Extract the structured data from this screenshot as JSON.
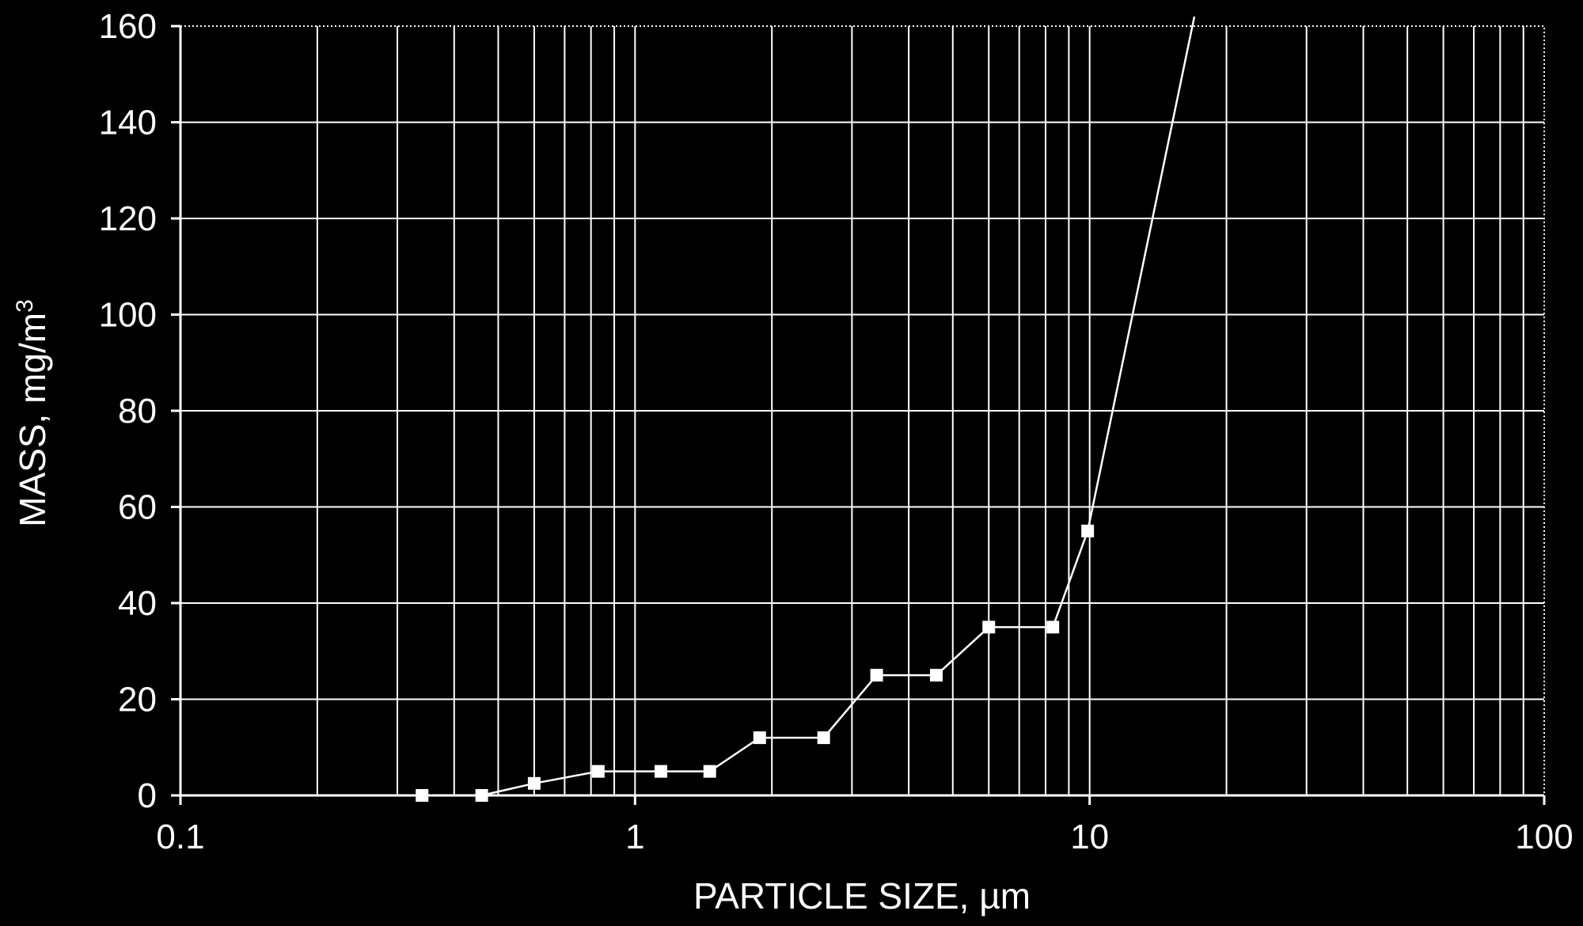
{
  "chart_data": {
    "type": "line",
    "xscale": "log",
    "xlim": [
      0.1,
      100
    ],
    "ylim": [
      0,
      160
    ],
    "xlabel": "PARTICLE SIZE, µm",
    "ylabel_main": "MASS, mg/m",
    "ylabel_sup": "3",
    "x_ticks": [
      "0.1",
      "1",
      "10",
      "100"
    ],
    "y_ticks": [
      "0",
      "20",
      "40",
      "60",
      "80",
      "100",
      "120",
      "140",
      "160"
    ],
    "grid": true,
    "series": [
      {
        "x": [
          0.34,
          0.46,
          0.6,
          0.83,
          1.14,
          1.46,
          1.88,
          2.6,
          3.4,
          4.6,
          6.0,
          8.3,
          9.9,
          17.0
        ],
        "y": [
          0,
          0,
          2.5,
          5,
          5,
          5,
          12,
          12,
          25,
          25,
          35,
          35,
          55,
          162
        ],
        "markers": [
          true,
          true,
          true,
          true,
          true,
          true,
          true,
          true,
          true,
          true,
          true,
          true,
          true,
          false
        ]
      }
    ]
  }
}
